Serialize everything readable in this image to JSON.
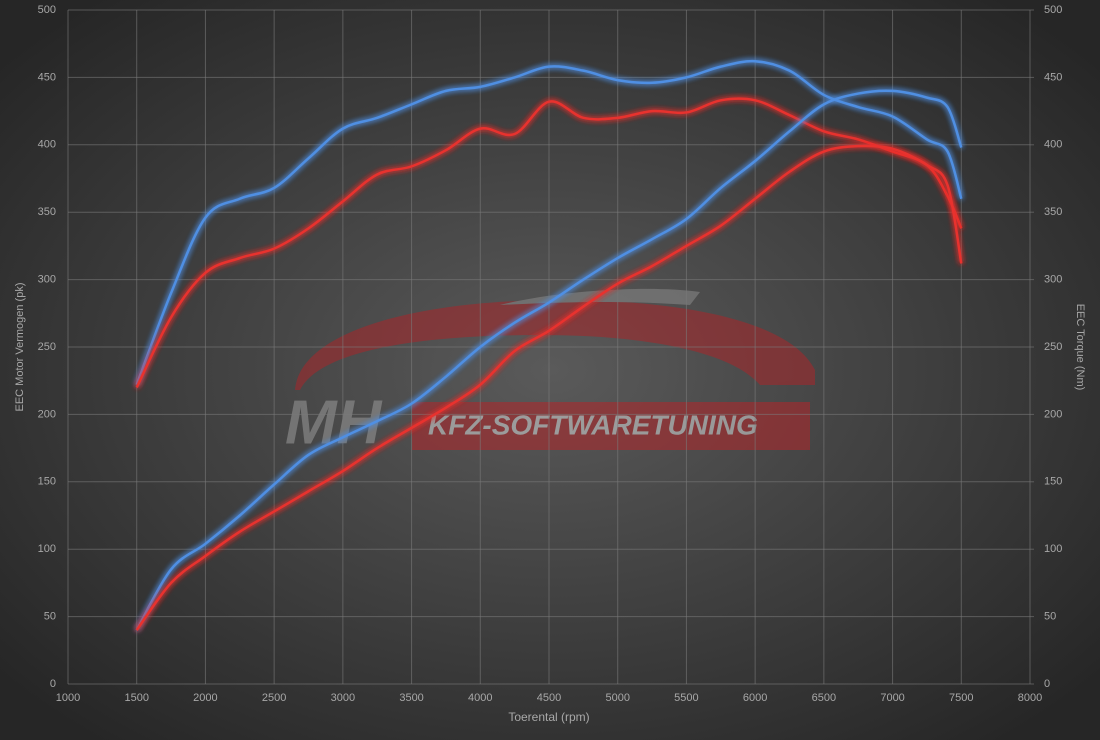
{
  "chart_data": {
    "type": "line",
    "x_label": "Toerental (rpm)",
    "y_label": "EEC Motor Vermogen (pk)",
    "y2_label": "EEC Torque (Nm)",
    "watermark": {
      "logo": "MH",
      "text": "KFZ-SOFTWARETUNING"
    },
    "x": [
      1500,
      1750,
      2000,
      2250,
      2500,
      2750,
      3000,
      3250,
      3500,
      3750,
      4000,
      4250,
      4500,
      4750,
      5000,
      5250,
      5500,
      5750,
      6000,
      6250,
      6500,
      6750,
      7000,
      7250,
      7400,
      7500
    ],
    "xlim": [
      1000,
      8000
    ],
    "xticks": [
      1000,
      1500,
      2000,
      2500,
      3000,
      3500,
      4000,
      4500,
      5000,
      5500,
      6000,
      6500,
      7000,
      7500,
      8000
    ],
    "ylim": [
      0,
      500
    ],
    "yticks": [
      0,
      50,
      100,
      150,
      200,
      250,
      300,
      350,
      400,
      450,
      500
    ],
    "y2lim": [
      0,
      500
    ],
    "y2ticks": [
      0,
      50,
      100,
      150,
      200,
      250,
      300,
      350,
      400,
      450,
      500
    ],
    "grid": true,
    "series": [
      {
        "color": "#4f8fe3",
        "axis": "y2",
        "values": [
          222,
          290,
          346,
          360,
          368,
          390,
          412,
          420,
          430,
          440,
          443,
          450,
          458,
          455,
          448,
          446,
          450,
          458,
          462,
          455,
          437,
          428,
          421,
          404,
          395,
          360
        ]
      },
      {
        "color": "#e8322e",
        "axis": "y2",
        "values": [
          220,
          272,
          305,
          316,
          323,
          338,
          358,
          378,
          384,
          396,
          412,
          408,
          432,
          420,
          420,
          425,
          424,
          433,
          433,
          422,
          410,
          404,
          395,
          385,
          362,
          338
        ]
      },
      {
        "color": "#4f8fe3",
        "values": [
          40,
          85,
          104,
          125,
          148,
          170,
          183,
          195,
          208,
          228,
          250,
          268,
          283,
          300,
          316,
          330,
          345,
          368,
          388,
          410,
          430,
          438,
          440,
          435,
          428,
          398
        ]
      },
      {
        "color": "#e8322e",
        "values": [
          40,
          75,
          95,
          113,
          128,
          143,
          158,
          175,
          190,
          205,
          222,
          247,
          262,
          280,
          297,
          310,
          325,
          340,
          360,
          380,
          395,
          399,
          397,
          385,
          370,
          312
        ]
      }
    ]
  }
}
